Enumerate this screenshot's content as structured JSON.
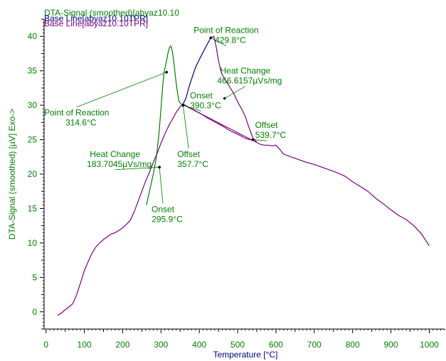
{
  "chart_data": {
    "type": "line",
    "legend": [
      {
        "text": "DTA-Signal (smoothed)[abyaz10.10",
        "color": "#008000"
      },
      {
        "text": "Base Line[abyaz10.10TPR]",
        "color": "#000080"
      },
      {
        "text": "Base Line[abyaz10.10TPR]",
        "color": "#800080"
      }
    ],
    "xlabel": "Temperature  [°C]",
    "ylabel": "DTA-Signal (smoothed)  [µV] Exo->",
    "xlim": [
      -5,
      1040
    ],
    "ylim": [
      -2.5,
      42.5
    ],
    "x_ticks": [
      "0",
      "100",
      "200",
      "300",
      "400",
      "500",
      "600",
      "700",
      "800",
      "900",
      "1000"
    ],
    "y_ticks": [
      "0",
      "5",
      "10",
      "15",
      "20",
      "25",
      "30",
      "35",
      "40"
    ],
    "series": [
      {
        "color": "#008000",
        "points": [
          [
            262,
            15.5
          ],
          [
            272,
            18
          ],
          [
            280,
            20
          ],
          [
            288,
            22.5
          ],
          [
            295,
            26
          ],
          [
            300,
            29.5
          ],
          [
            304,
            32.5
          ],
          [
            308,
            34.8
          ],
          [
            314,
            36.3
          ],
          [
            318,
            37.5
          ],
          [
            322,
            38.4
          ],
          [
            326,
            38.6
          ],
          [
            329,
            38
          ],
          [
            333,
            36.5
          ],
          [
            338,
            34
          ],
          [
            343,
            31.8
          ],
          [
            347,
            30.6
          ],
          [
            352,
            30.2
          ],
          [
            357,
            30.1
          ]
        ]
      },
      {
        "color": "#000080",
        "points": [
          [
            357,
            30.1
          ],
          [
            365,
            31
          ],
          [
            375,
            33
          ],
          [
            390,
            35.5
          ],
          [
            405,
            37.2
          ],
          [
            420,
            38.8
          ],
          [
            430,
            39.8
          ]
        ]
      },
      {
        "color": "#800080",
        "points": [
          [
            30,
            -0.5
          ],
          [
            40,
            -0.2
          ],
          [
            50,
            0.3
          ],
          [
            60,
            0.7
          ],
          [
            70,
            1.2
          ],
          [
            80,
            2.5
          ],
          [
            90,
            4.2
          ],
          [
            100,
            6
          ],
          [
            110,
            7.3
          ],
          [
            120,
            8.5
          ],
          [
            130,
            9.4
          ],
          [
            140,
            10
          ],
          [
            150,
            10.5
          ],
          [
            160,
            10.9
          ],
          [
            170,
            11.3
          ],
          [
            180,
            11.5
          ],
          [
            190,
            11.8
          ],
          [
            200,
            12.2
          ],
          [
            210,
            12.7
          ],
          [
            220,
            13.3
          ],
          [
            230,
            14.5
          ],
          [
            240,
            16
          ],
          [
            250,
            17.5
          ],
          [
            260,
            19
          ],
          [
            270,
            20.3
          ],
          [
            280,
            21.7
          ],
          [
            290,
            23
          ],
          [
            300,
            24.5
          ],
          [
            310,
            25.8
          ],
          [
            320,
            27
          ],
          [
            330,
            28
          ],
          [
            340,
            29
          ],
          [
            350,
            29.8
          ],
          [
            357,
            30.1
          ],
          [
            360,
            30.1
          ],
          [
            380,
            29.5
          ],
          [
            400,
            28.9
          ],
          [
            420,
            28.2
          ],
          [
            440,
            27.6
          ],
          [
            460,
            27
          ],
          [
            480,
            26.3
          ],
          [
            500,
            25.8
          ],
          [
            520,
            25.2
          ],
          [
            539,
            24.9
          ],
          [
            550,
            24.6
          ],
          [
            560,
            24.3
          ],
          [
            570,
            24.2
          ],
          [
            580,
            24.2
          ],
          [
            590,
            24.1
          ],
          [
            600,
            24.2
          ],
          [
            610,
            23.6
          ],
          [
            620,
            22.9
          ],
          [
            640,
            22.5
          ],
          [
            660,
            22.1
          ],
          [
            680,
            21.7
          ],
          [
            700,
            21.4
          ],
          [
            720,
            21
          ],
          [
            740,
            20.6
          ],
          [
            760,
            20.2
          ],
          [
            780,
            19.7
          ],
          [
            800,
            18.9
          ],
          [
            820,
            18.2
          ],
          [
            840,
            17.5
          ],
          [
            860,
            16.5
          ],
          [
            880,
            15.7
          ],
          [
            900,
            14.8
          ],
          [
            920,
            14
          ],
          [
            940,
            13.4
          ],
          [
            960,
            12.5
          ],
          [
            980,
            11.3
          ],
          [
            1000,
            9.6
          ]
        ]
      },
      {
        "color": "#800080",
        "points": [
          [
            430,
            39.8
          ],
          [
            438,
            40
          ],
          [
            444,
            38.5
          ],
          [
            450,
            36.5
          ],
          [
            456,
            35
          ],
          [
            462,
            34.2
          ],
          [
            470,
            33.5
          ],
          [
            480,
            32.6
          ],
          [
            490,
            31.7
          ],
          [
            500,
            30.5
          ],
          [
            510,
            29.5
          ],
          [
            520,
            28.4
          ],
          [
            528,
            27
          ],
          [
            535,
            26
          ],
          [
            540,
            25.2
          ],
          [
            545,
            25
          ],
          [
            550,
            24.6
          ]
        ]
      },
      {
        "color": "#800080",
        "points": [
          [
            357,
            30.1
          ],
          [
            539,
            24.9
          ]
        ]
      }
    ],
    "annotations": [
      {
        "text": "Point of Reaction",
        "value": "314.6°C",
        "x": 314.6,
        "y": 34.8,
        "label_x": 80,
        "label_y": 28.5
      },
      {
        "text": "Heat Change",
        "value": "183.7045µVs/mg",
        "x": 295.9,
        "y": 21,
        "label_x": 180,
        "label_y": 22.5
      },
      {
        "text": "Onset",
        "value": "295.9°C",
        "x": 295.9,
        "y": 21,
        "label_x": 305,
        "label_y": 14.5
      },
      {
        "text": "Offset",
        "value": "357.7°C",
        "x": 357.7,
        "y": 30,
        "label_x": 372,
        "label_y": 22.5
      },
      {
        "text": "Onset",
        "value": "390.3°C",
        "x": 357.7,
        "y": 30,
        "label_x": 405,
        "label_y": 31
      },
      {
        "text": "Point of Reaction",
        "value": "429.8°C",
        "x": 429.8,
        "y": 39.8,
        "label_x": 470,
        "label_y": 40.5
      },
      {
        "text": "Heat Change",
        "value": "466.6157µVs/mg",
        "x": 466,
        "y": 31,
        "label_x": 520,
        "label_y": 34.6
      },
      {
        "text": "Offset",
        "value": "539.7°C",
        "x": 539.7,
        "y": 25,
        "label_x": 575,
        "label_y": 26.7
      }
    ]
  }
}
